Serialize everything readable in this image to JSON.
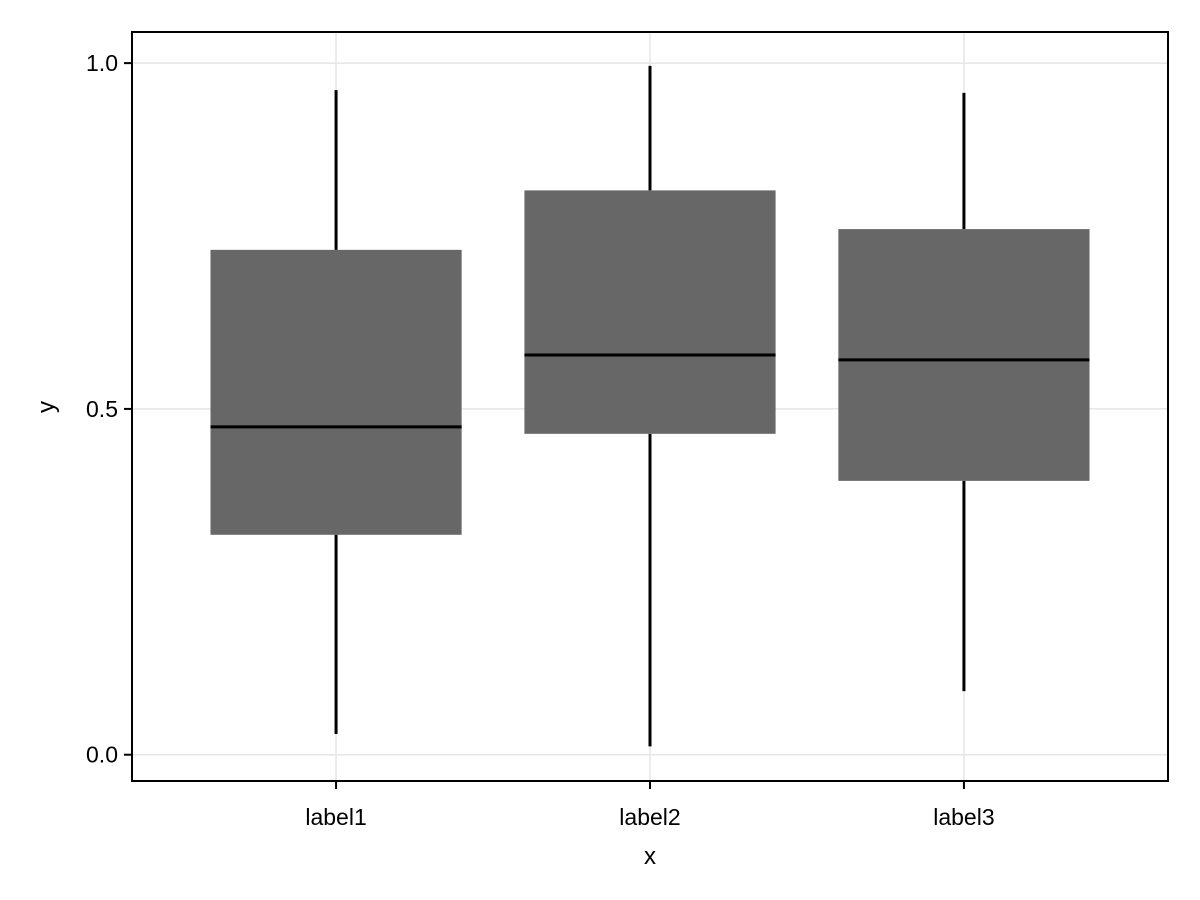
{
  "chart_data": {
    "type": "box",
    "title": "",
    "xlabel": "x",
    "ylabel": "y",
    "categories": [
      "label1",
      "label2",
      "label3"
    ],
    "boxes": [
      {
        "category": "label1",
        "whisker_low": 0.03,
        "q1": 0.318,
        "median": 0.474,
        "q3": 0.73,
        "whisker_high": 0.961
      },
      {
        "category": "label2",
        "whisker_low": 0.012,
        "q1": 0.464,
        "median": 0.578,
        "q3": 0.816,
        "whisker_high": 0.996
      },
      {
        "category": "label3",
        "whisker_low": 0.092,
        "q1": 0.396,
        "median": 0.571,
        "q3": 0.76,
        "whisker_high": 0.957
      }
    ],
    "yticks": [
      0.0,
      0.5,
      1.0
    ],
    "ytick_labels": [
      "0.0",
      "0.5",
      "1.0"
    ],
    "ylim": [
      -0.038,
      1.045
    ],
    "grid": true,
    "colors": {
      "box_fill": "#676767",
      "median": "#000000",
      "whisker": "#000000",
      "grid": "#e5e5e5",
      "frame": "#000000"
    }
  }
}
